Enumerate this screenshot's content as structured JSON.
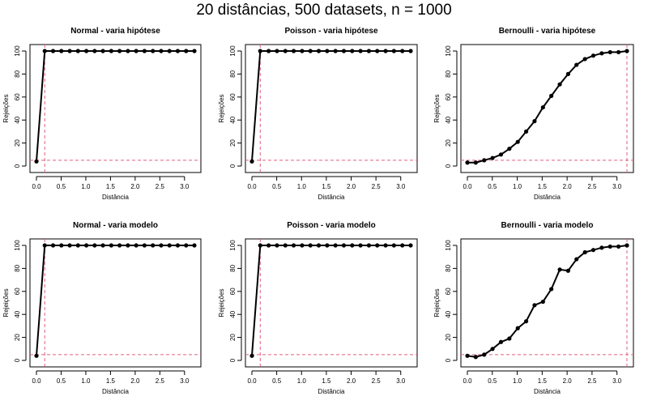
{
  "figure": {
    "title": "20 distâncias, 500 datasets, n = 1000"
  },
  "style": {
    "line_color": "#000000",
    "ref_line_color": "#e0607e",
    "point_color": "#000000"
  },
  "chart_data": [
    {
      "type": "line",
      "title": "Normal - varia hipótese",
      "xlabel": "Distância",
      "ylabel": "Rejeições",
      "xlim": [
        0,
        3.2
      ],
      "ylim": [
        0,
        100
      ],
      "xticks": [
        0,
        0.5,
        1,
        1.5,
        2,
        2.5,
        3
      ],
      "xtick_labels": [
        "0.0",
        "0.5",
        "1.0",
        "1.5",
        "2.0",
        "2.5",
        "3.0"
      ],
      "yticks": [
        0,
        20,
        40,
        60,
        80,
        100
      ],
      "x": [
        0,
        0.168,
        0.337,
        0.505,
        0.674,
        0.842,
        1.011,
        1.179,
        1.347,
        1.516,
        1.684,
        1.853,
        2.021,
        2.189,
        2.358,
        2.526,
        2.695,
        2.863,
        3.032,
        3.2
      ],
      "series": [
        {
          "values": [
            4,
            100,
            100,
            100,
            100,
            100,
            100,
            100,
            100,
            100,
            100,
            100,
            100,
            100,
            100,
            100,
            100,
            100,
            100,
            100
          ]
        }
      ],
      "reference_lines": {
        "horizontal": 5,
        "vertical": 0.168
      }
    },
    {
      "type": "line",
      "title": "Poisson - varia hipótese",
      "xlabel": "Distância",
      "ylabel": "Rejeições",
      "xlim": [
        0,
        3.2
      ],
      "ylim": [
        0,
        100
      ],
      "xticks": [
        0,
        0.5,
        1,
        1.5,
        2,
        2.5,
        3
      ],
      "xtick_labels": [
        "0.0",
        "0.5",
        "1.0",
        "1.5",
        "2.0",
        "2.5",
        "3.0"
      ],
      "yticks": [
        0,
        20,
        40,
        60,
        80,
        100
      ],
      "x": [
        0,
        0.168,
        0.337,
        0.505,
        0.674,
        0.842,
        1.011,
        1.179,
        1.347,
        1.516,
        1.684,
        1.853,
        2.021,
        2.189,
        2.358,
        2.526,
        2.695,
        2.863,
        3.032,
        3.2
      ],
      "series": [
        {
          "values": [
            4,
            100,
            100,
            100,
            100,
            100,
            100,
            100,
            100,
            100,
            100,
            100,
            100,
            100,
            100,
            100,
            100,
            100,
            100,
            100
          ]
        }
      ],
      "reference_lines": {
        "horizontal": 5,
        "vertical": 0.168
      }
    },
    {
      "type": "line",
      "title": "Bernoulli - varia hipótese",
      "xlabel": "Distância",
      "ylabel": "Rejeições",
      "xlim": [
        0,
        3.2
      ],
      "ylim": [
        0,
        100
      ],
      "xticks": [
        0,
        0.5,
        1,
        1.5,
        2,
        2.5,
        3
      ],
      "xtick_labels": [
        "0.0",
        "0.5",
        "1.0",
        "1.5",
        "2.0",
        "2.5",
        "3.0"
      ],
      "yticks": [
        0,
        20,
        40,
        60,
        80,
        100
      ],
      "x": [
        0,
        0.168,
        0.337,
        0.505,
        0.674,
        0.842,
        1.011,
        1.179,
        1.347,
        1.516,
        1.684,
        1.853,
        2.021,
        2.189,
        2.358,
        2.526,
        2.695,
        2.863,
        3.032,
        3.2
      ],
      "series": [
        {
          "values": [
            3,
            3,
            5,
            7,
            10,
            15,
            21,
            30,
            39,
            51,
            61,
            71,
            80,
            88,
            93,
            96,
            98,
            99,
            99,
            100
          ]
        }
      ],
      "reference_lines": {
        "horizontal": 5,
        "vertical": 3.2
      }
    },
    {
      "type": "line",
      "title": "Normal - varia modelo",
      "xlabel": "Distância",
      "ylabel": "Rejeições",
      "xlim": [
        0,
        3.2
      ],
      "ylim": [
        0,
        100
      ],
      "xticks": [
        0,
        0.5,
        1,
        1.5,
        2,
        2.5,
        3
      ],
      "xtick_labels": [
        "0.0",
        "0.5",
        "1.0",
        "1.5",
        "2.0",
        "2.5",
        "3.0"
      ],
      "yticks": [
        0,
        20,
        40,
        60,
        80,
        100
      ],
      "x": [
        0,
        0.168,
        0.337,
        0.505,
        0.674,
        0.842,
        1.011,
        1.179,
        1.347,
        1.516,
        1.684,
        1.853,
        2.021,
        2.189,
        2.358,
        2.526,
        2.695,
        2.863,
        3.032,
        3.2
      ],
      "series": [
        {
          "values": [
            4,
            100,
            100,
            100,
            100,
            100,
            100,
            100,
            100,
            100,
            100,
            100,
            100,
            100,
            100,
            100,
            100,
            100,
            100,
            100
          ]
        }
      ],
      "reference_lines": {
        "horizontal": 5,
        "vertical": 0.168
      }
    },
    {
      "type": "line",
      "title": "Poisson - varia modelo",
      "xlabel": "Distância",
      "ylabel": "Rejeições",
      "xlim": [
        0,
        3.2
      ],
      "ylim": [
        0,
        100
      ],
      "xticks": [
        0,
        0.5,
        1,
        1.5,
        2,
        2.5,
        3
      ],
      "xtick_labels": [
        "0.0",
        "0.5",
        "1.0",
        "1.5",
        "2.0",
        "2.5",
        "3.0"
      ],
      "yticks": [
        0,
        20,
        40,
        60,
        80,
        100
      ],
      "x": [
        0,
        0.168,
        0.337,
        0.505,
        0.674,
        0.842,
        1.011,
        1.179,
        1.347,
        1.516,
        1.684,
        1.853,
        2.021,
        2.189,
        2.358,
        2.526,
        2.695,
        2.863,
        3.032,
        3.2
      ],
      "series": [
        {
          "values": [
            4,
            100,
            100,
            100,
            100,
            100,
            100,
            100,
            100,
            100,
            100,
            100,
            100,
            100,
            100,
            100,
            100,
            100,
            100,
            100
          ]
        }
      ],
      "reference_lines": {
        "horizontal": 5,
        "vertical": 0.168
      }
    },
    {
      "type": "line",
      "title": "Bernoulli - varia modelo",
      "xlabel": "Distância",
      "ylabel": "Rejeições",
      "xlim": [
        0,
        3.2
      ],
      "ylim": [
        0,
        100
      ],
      "xticks": [
        0,
        0.5,
        1,
        1.5,
        2,
        2.5,
        3
      ],
      "xtick_labels": [
        "0.0",
        "0.5",
        "1.0",
        "1.5",
        "2.0",
        "2.5",
        "3.0"
      ],
      "yticks": [
        0,
        20,
        40,
        60,
        80,
        100
      ],
      "x": [
        0,
        0.168,
        0.337,
        0.505,
        0.674,
        0.842,
        1.011,
        1.179,
        1.347,
        1.516,
        1.684,
        1.853,
        2.021,
        2.189,
        2.358,
        2.526,
        2.695,
        2.863,
        3.032,
        3.2
      ],
      "series": [
        {
          "values": [
            4,
            3,
            5,
            10,
            16,
            19,
            28,
            34,
            48,
            51,
            62,
            79,
            78,
            88,
            94,
            96,
            98,
            99,
            99,
            100
          ]
        }
      ],
      "reference_lines": {
        "horizontal": 5,
        "vertical": 3.2
      }
    }
  ]
}
